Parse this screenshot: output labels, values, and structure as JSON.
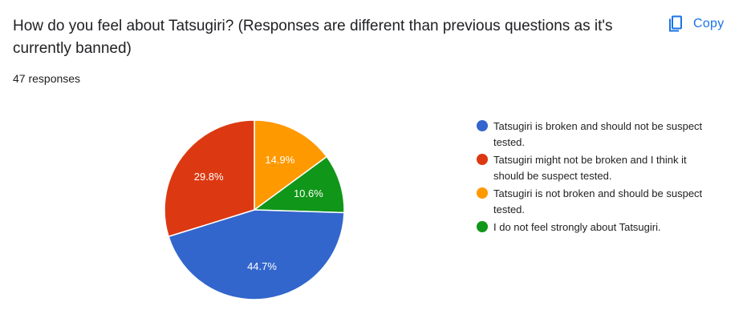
{
  "question": {
    "title": "How do you feel about Tatsugiri? (Responses are different than previous questions as it's currently banned)",
    "responses_label": "47 responses"
  },
  "toolbar": {
    "copy_label": "Copy",
    "copy_icon": "copy-icon",
    "accent_color": "#1a73e8"
  },
  "chart_data": {
    "type": "pie",
    "title": "",
    "legend_position": "right",
    "slices": [
      {
        "label": "Tatsugiri is broken and should not be suspect tested.",
        "value": 44.7,
        "display": "44.7%",
        "color": "#3366cc"
      },
      {
        "label": "Tatsugiri might not be broken and I think it should be suspect tested.",
        "value": 29.8,
        "display": "29.8%",
        "color": "#dc3912"
      },
      {
        "label": "Tatsugiri is not broken and should be suspect tested.",
        "value": 14.9,
        "display": "14.9%",
        "color": "#ff9900"
      },
      {
        "label": "I do not feel strongly about Tatsugiri.",
        "value": 10.6,
        "display": "10.6%",
        "color": "#109618"
      }
    ]
  }
}
